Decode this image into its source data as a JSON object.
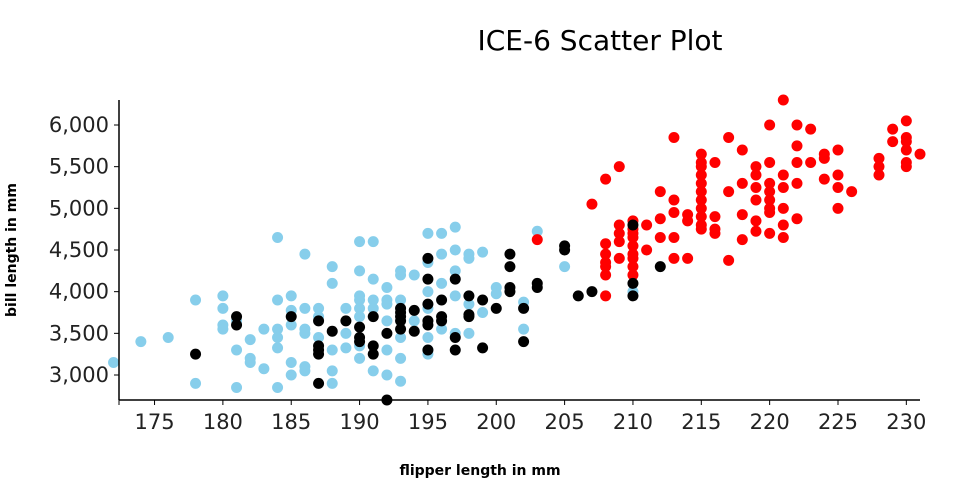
{
  "chart_data": {
    "type": "scatter",
    "title": "ICE-6 Scatter Plot",
    "xlabel": "flipper length in mm",
    "ylabel": "bill length in mm",
    "xlim": [
      172.4,
      231
    ],
    "ylim": [
      2700,
      6300
    ],
    "xticks": [
      175,
      180,
      185,
      190,
      195,
      200,
      205,
      210,
      215,
      220,
      225,
      230
    ],
    "yticks": [
      3000,
      3500,
      4000,
      4500,
      5000,
      5500,
      6000
    ],
    "ytick_labels": [
      "3,000",
      "3,500",
      "4,000",
      "4,500",
      "5,000",
      "5,500",
      "6,000"
    ],
    "grid": false,
    "series": [
      {
        "color": "#87ceeb",
        "points": [
          [
            172,
            3150
          ],
          [
            174,
            3400
          ],
          [
            176,
            3450
          ],
          [
            178,
            3900
          ],
          [
            178,
            2900
          ],
          [
            180,
            3950
          ],
          [
            180,
            3800
          ],
          [
            180,
            3600
          ],
          [
            180,
            3550
          ],
          [
            181,
            3300
          ],
          [
            181,
            3650
          ],
          [
            181,
            2850
          ],
          [
            182,
            3200
          ],
          [
            182,
            3150
          ],
          [
            182,
            3425
          ],
          [
            183,
            3075
          ],
          [
            183,
            3550
          ],
          [
            184,
            4650
          ],
          [
            184,
            3900
          ],
          [
            184,
            3550
          ],
          [
            184,
            3450
          ],
          [
            184,
            3325
          ],
          [
            184,
            2850
          ],
          [
            185,
            3950
          ],
          [
            185,
            3775
          ],
          [
            185,
            3600
          ],
          [
            185,
            3150
          ],
          [
            185,
            3000
          ],
          [
            186,
            4450
          ],
          [
            186,
            3800
          ],
          [
            186,
            3550
          ],
          [
            186,
            3500
          ],
          [
            186,
            3100
          ],
          [
            186,
            3050
          ],
          [
            187,
            3800
          ],
          [
            187,
            3700
          ],
          [
            187,
            3450
          ],
          [
            188,
            4300
          ],
          [
            188,
            4100
          ],
          [
            188,
            3300
          ],
          [
            188,
            3050
          ],
          [
            188,
            2900
          ],
          [
            189,
            3800
          ],
          [
            189,
            3500
          ],
          [
            189,
            3325
          ],
          [
            190,
            4600
          ],
          [
            190,
            4250
          ],
          [
            190,
            3950
          ],
          [
            190,
            3900
          ],
          [
            190,
            3800
          ],
          [
            190,
            3700
          ],
          [
            190,
            3350
          ],
          [
            190,
            3200
          ],
          [
            191,
            4600
          ],
          [
            191,
            4150
          ],
          [
            191,
            3900
          ],
          [
            191,
            3800
          ],
          [
            191,
            3050
          ],
          [
            192,
            4050
          ],
          [
            192,
            3850
          ],
          [
            192,
            3900
          ],
          [
            192,
            3650
          ],
          [
            192,
            3300
          ],
          [
            192,
            3000
          ],
          [
            193,
            4250
          ],
          [
            193,
            4200
          ],
          [
            193,
            3900
          ],
          [
            193,
            3450
          ],
          [
            193,
            3200
          ],
          [
            193,
            2925
          ],
          [
            194,
            4200
          ],
          [
            194,
            3650
          ],
          [
            195,
            4700
          ],
          [
            195,
            4350
          ],
          [
            195,
            4000
          ],
          [
            195,
            3800
          ],
          [
            195,
            3300
          ],
          [
            195,
            3250
          ],
          [
            195,
            3450
          ],
          [
            196,
            4700
          ],
          [
            196,
            4450
          ],
          [
            196,
            4100
          ],
          [
            196,
            3550
          ],
          [
            197,
            4775
          ],
          [
            197,
            4500
          ],
          [
            197,
            4250
          ],
          [
            197,
            3950
          ],
          [
            197,
            3500
          ],
          [
            198,
            4450
          ],
          [
            198,
            4400
          ],
          [
            198,
            3850
          ],
          [
            198,
            3500
          ],
          [
            199,
            4475
          ],
          [
            199,
            3750
          ],
          [
            200,
            4050
          ],
          [
            200,
            3975
          ],
          [
            202,
            3875
          ],
          [
            202,
            3550
          ],
          [
            203,
            4725
          ],
          [
            205,
            4300
          ],
          [
            210,
            4000
          ]
        ]
      },
      {
        "color": "#ff0000",
        "points": [
          [
            203,
            4625
          ],
          [
            207,
            5050
          ],
          [
            208,
            5350
          ],
          [
            208,
            3950
          ],
          [
            208,
            4575
          ],
          [
            208,
            4450
          ],
          [
            208,
            4350
          ],
          [
            208,
            4300
          ],
          [
            208,
            4200
          ],
          [
            209,
            5500
          ],
          [
            209,
            4800
          ],
          [
            209,
            4700
          ],
          [
            209,
            4600
          ],
          [
            209,
            4400
          ],
          [
            210,
            4850
          ],
          [
            210,
            4750
          ],
          [
            210,
            4700
          ],
          [
            210,
            4650
          ],
          [
            210,
            4550
          ],
          [
            210,
            4450
          ],
          [
            210,
            4400
          ],
          [
            210,
            4300
          ],
          [
            210,
            4200
          ],
          [
            211,
            4800
          ],
          [
            211,
            4500
          ],
          [
            212,
            5200
          ],
          [
            212,
            4875
          ],
          [
            212,
            4650
          ],
          [
            213,
            5850
          ],
          [
            213,
            5100
          ],
          [
            213,
            4950
          ],
          [
            213,
            4650
          ],
          [
            213,
            4400
          ],
          [
            214,
            4925
          ],
          [
            214,
            4850
          ],
          [
            214,
            4400
          ],
          [
            215,
            5650
          ],
          [
            215,
            5550
          ],
          [
            215,
            5500
          ],
          [
            215,
            5400
          ],
          [
            215,
            5300
          ],
          [
            215,
            5200
          ],
          [
            215,
            5100
          ],
          [
            215,
            5000
          ],
          [
            215,
            4900
          ],
          [
            215,
            4800
          ],
          [
            215,
            4750
          ],
          [
            216,
            5550
          ],
          [
            216,
            4900
          ],
          [
            216,
            4750
          ],
          [
            216,
            4700
          ],
          [
            217,
            5850
          ],
          [
            217,
            5200
          ],
          [
            217,
            4375
          ],
          [
            218,
            5700
          ],
          [
            218,
            5300
          ],
          [
            218,
            4925
          ],
          [
            218,
            4625
          ],
          [
            219,
            5500
          ],
          [
            219,
            5400
          ],
          [
            219,
            5250
          ],
          [
            219,
            5100
          ],
          [
            219,
            4850
          ],
          [
            219,
            4725
          ],
          [
            220,
            6000
          ],
          [
            220,
            5550
          ],
          [
            220,
            5300
          ],
          [
            220,
            5200
          ],
          [
            220,
            5100
          ],
          [
            220,
            5000
          ],
          [
            220,
            4950
          ],
          [
            220,
            4700
          ],
          [
            221,
            6300
          ],
          [
            221,
            5400
          ],
          [
            221,
            5250
          ],
          [
            221,
            5000
          ],
          [
            221,
            4800
          ],
          [
            221,
            4650
          ],
          [
            222,
            6000
          ],
          [
            222,
            5750
          ],
          [
            222,
            5550
          ],
          [
            222,
            5300
          ],
          [
            222,
            4875
          ],
          [
            223,
            5950
          ],
          [
            223,
            5550
          ],
          [
            224,
            5650
          ],
          [
            224,
            5600
          ],
          [
            224,
            5350
          ],
          [
            225,
            5700
          ],
          [
            225,
            5400
          ],
          [
            225,
            5250
          ],
          [
            225,
            5000
          ],
          [
            226,
            5200
          ],
          [
            228,
            5600
          ],
          [
            228,
            5500
          ],
          [
            228,
            5400
          ],
          [
            229,
            5950
          ],
          [
            229,
            5800
          ],
          [
            230,
            6050
          ],
          [
            230,
            5850
          ],
          [
            230,
            5800
          ],
          [
            230,
            5700
          ],
          [
            230,
            5550
          ],
          [
            230,
            5500
          ],
          [
            231,
            5650
          ]
        ]
      },
      {
        "color": "#000000",
        "points": [
          [
            178,
            3250
          ],
          [
            181,
            3700
          ],
          [
            181,
            3600
          ],
          [
            185,
            3700
          ],
          [
            187,
            3650
          ],
          [
            187,
            3350
          ],
          [
            187,
            3300
          ],
          [
            187,
            3250
          ],
          [
            187,
            2900
          ],
          [
            188,
            3525
          ],
          [
            189,
            3650
          ],
          [
            190,
            3575
          ],
          [
            190,
            3450
          ],
          [
            190,
            3400
          ],
          [
            191,
            3250
          ],
          [
            191,
            3700
          ],
          [
            191,
            3350
          ],
          [
            192,
            2700
          ],
          [
            192,
            3500
          ],
          [
            193,
            3800
          ],
          [
            193,
            3750
          ],
          [
            193,
            3700
          ],
          [
            193,
            3650
          ],
          [
            193,
            3550
          ],
          [
            194,
            3775
          ],
          [
            194,
            3525
          ],
          [
            195,
            4400
          ],
          [
            195,
            4150
          ],
          [
            195,
            3850
          ],
          [
            195,
            3650
          ],
          [
            195,
            3600
          ],
          [
            195,
            3300
          ],
          [
            196,
            3900
          ],
          [
            196,
            3700
          ],
          [
            196,
            3650
          ],
          [
            197,
            4150
          ],
          [
            197,
            3450
          ],
          [
            197,
            3300
          ],
          [
            198,
            3950
          ],
          [
            198,
            3725
          ],
          [
            198,
            3700
          ],
          [
            199,
            3900
          ],
          [
            199,
            3325
          ],
          [
            200,
            3800
          ],
          [
            201,
            4450
          ],
          [
            201,
            4300
          ],
          [
            201,
            4050
          ],
          [
            201,
            4000
          ],
          [
            202,
            3800
          ],
          [
            202,
            3400
          ],
          [
            203,
            4100
          ],
          [
            203,
            4050
          ],
          [
            205,
            4550
          ],
          [
            205,
            4500
          ],
          [
            206,
            3950
          ],
          [
            207,
            4000
          ],
          [
            210,
            4800
          ],
          [
            210,
            4100
          ],
          [
            210,
            3950
          ],
          [
            212,
            4300
          ]
        ]
      }
    ]
  }
}
